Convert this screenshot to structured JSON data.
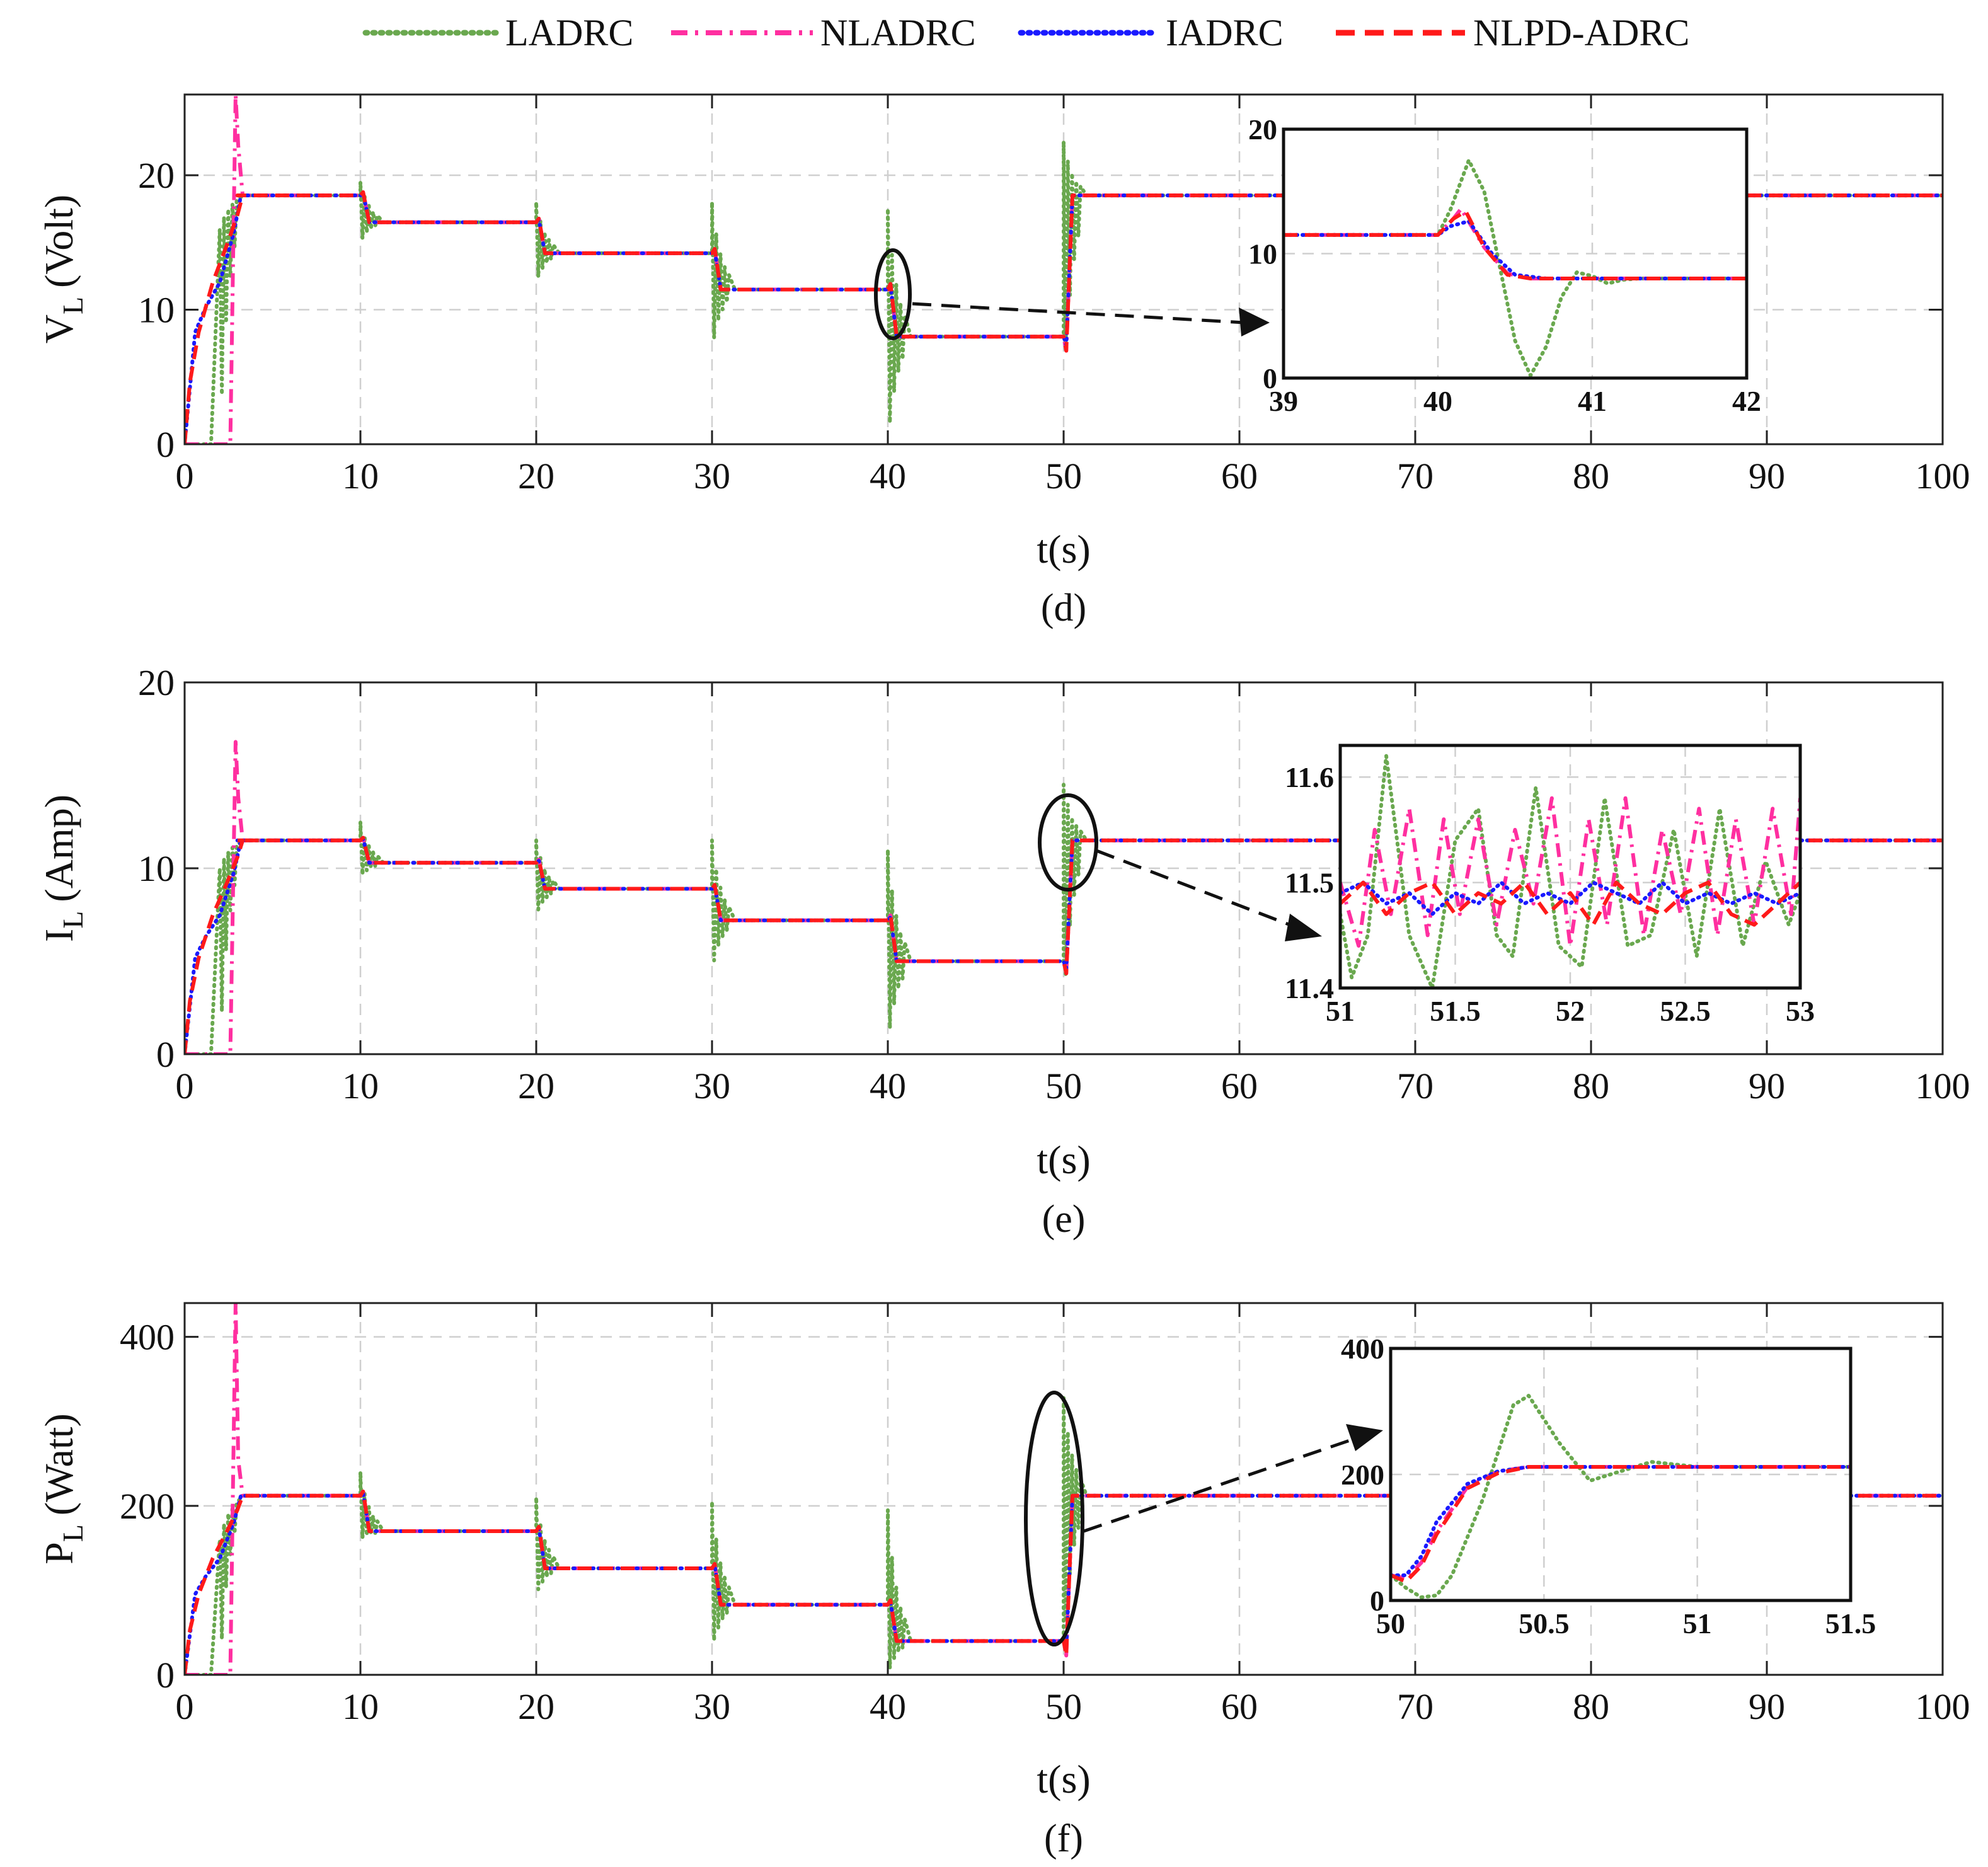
{
  "legend": [
    {
      "name": "LADRC",
      "color": "#6aa84f",
      "style": "dotted"
    },
    {
      "name": "NLADRC",
      "color": "#ff2fa0",
      "style": "dashdot"
    },
    {
      "name": "IADRC",
      "color": "#1a1aff",
      "style": "dotted"
    },
    {
      "name": "NLPD-ADRC",
      "color": "#ff1a1a",
      "style": "dashed"
    }
  ],
  "chart_data": [
    {
      "type": "line",
      "panel": "(d)",
      "xlabel": "t(s)",
      "ylabel_main": "V",
      "ylabel_sub": "L",
      "ylabel_unit": "(Volt)",
      "xlim": [
        0,
        100
      ],
      "ylim": [
        0,
        26
      ],
      "xticks": [
        0,
        10,
        20,
        30,
        40,
        50,
        60,
        70,
        80,
        90,
        100
      ],
      "yticks": [
        0,
        10,
        20
      ],
      "steady_levels": [
        {
          "t_start": 3,
          "t_end": 10,
          "value": 18.5
        },
        {
          "t_start": 10,
          "t_end": 20,
          "value": 16.5
        },
        {
          "t_start": 20,
          "t_end": 30,
          "value": 14.2
        },
        {
          "t_start": 30,
          "t_end": 40,
          "value": 11.5
        },
        {
          "t_start": 40,
          "t_end": 50,
          "value": 8
        },
        {
          "t_start": 50,
          "t_end": 100,
          "value": 18.5
        }
      ],
      "ladrc_transients": [
        {
          "t": 2,
          "max": 16,
          "min": 0
        },
        {
          "t": 10,
          "max": 19.5,
          "min": 15
        },
        {
          "t": 20,
          "max": 18,
          "min": 12
        },
        {
          "t": 30,
          "max": 18,
          "min": 7
        },
        {
          "t": 40,
          "max": 17.5,
          "min": 0
        },
        {
          "t": 50,
          "max": 22.5,
          "min": 4
        }
      ],
      "nladrc_startup_peak": {
        "t": 2.9,
        "value": 26
      },
      "inset": {
        "xlim": [
          39,
          42
        ],
        "ylim": [
          0,
          20
        ],
        "xticks": [
          39,
          40,
          41,
          42
        ],
        "yticks": [
          0,
          10,
          20
        ],
        "series": [
          {
            "name": "LADRC",
            "x": [
              39,
              40,
              40.08,
              40.2,
              40.3,
              40.4,
              40.5,
              40.6,
              40.7,
              40.8,
              40.9,
              41,
              41.1,
              41.2,
              41.3,
              42
            ],
            "y": [
              11.5,
              11.5,
              13.5,
              17.5,
              15,
              9,
              3,
              0.2,
              2.5,
              6.5,
              8.5,
              8.2,
              7.6,
              7.9,
              8,
              8
            ]
          },
          {
            "name": "NLADRC",
            "x": [
              39,
              40,
              40.1,
              40.15,
              40.3,
              40.45,
              40.6,
              42
            ],
            "y": [
              11.5,
              11.5,
              12.8,
              13.6,
              10.5,
              8.4,
              8,
              8
            ]
          },
          {
            "name": "IADRC",
            "x": [
              39,
              40,
              40.08,
              40.2,
              40.35,
              40.5,
              40.7,
              42
            ],
            "y": [
              11.5,
              11.5,
              12.2,
              12.6,
              10,
              8.3,
              8,
              8
            ]
          },
          {
            "name": "NLPD-ADRC",
            "x": [
              39,
              40,
              40.1,
              40.18,
              40.3,
              40.45,
              40.6,
              42
            ],
            "y": [
              11.5,
              11.5,
              12.8,
              13.4,
              10.5,
              8.3,
              8,
              8
            ]
          }
        ]
      }
    },
    {
      "type": "line",
      "panel": "(e)",
      "xlabel": "t(s)",
      "ylabel_main": "I",
      "ylabel_sub": "L",
      "ylabel_unit": "(Amp)",
      "xlim": [
        0,
        100
      ],
      "ylim": [
        0,
        20
      ],
      "xticks": [
        0,
        10,
        20,
        30,
        40,
        50,
        60,
        70,
        80,
        90,
        100
      ],
      "yticks": [
        0,
        10,
        20
      ],
      "steady_levels": [
        {
          "t_start": 3,
          "t_end": 10,
          "value": 11.5
        },
        {
          "t_start": 10,
          "t_end": 20,
          "value": 10.3
        },
        {
          "t_start": 20,
          "t_end": 30,
          "value": 8.9
        },
        {
          "t_start": 30,
          "t_end": 40,
          "value": 7.2
        },
        {
          "t_start": 40,
          "t_end": 50,
          "value": 5
        },
        {
          "t_start": 50,
          "t_end": 100,
          "value": 11.5
        }
      ],
      "ladrc_transients": [
        {
          "t": 2,
          "max": 10,
          "min": 0
        },
        {
          "t": 10,
          "max": 12.5,
          "min": 9.5
        },
        {
          "t": 20,
          "max": 11.5,
          "min": 7.5
        },
        {
          "t": 30,
          "max": 11.5,
          "min": 4.5
        },
        {
          "t": 40,
          "max": 11,
          "min": 0.5
        },
        {
          "t": 50,
          "max": 14.5,
          "min": 2.5
        }
      ],
      "nladrc_startup_peak": {
        "t": 2.9,
        "value": 16.8
      },
      "inset": {
        "xlim": [
          51,
          53
        ],
        "ylim": [
          11.4,
          11.63
        ],
        "xticks": [
          51,
          51.5,
          52,
          52.5,
          53
        ],
        "yticks": [
          11.4,
          11.5,
          11.6
        ],
        "series": [
          {
            "name": "LADRC",
            "x": [
              51,
              51.05,
              51.12,
              51.2,
              51.3,
              51.4,
              51.5,
              51.6,
              51.68,
              51.75,
              51.85,
              51.95,
              52.05,
              52.15,
              52.25,
              52.35,
              52.45,
              52.55,
              52.65,
              52.75,
              52.85,
              52.95,
              53
            ],
            "y": [
              11.47,
              11.41,
              11.45,
              11.62,
              11.45,
              11.4,
              11.54,
              11.57,
              11.45,
              11.43,
              11.59,
              11.44,
              11.42,
              11.58,
              11.44,
              11.45,
              11.55,
              11.43,
              11.57,
              11.44,
              11.52,
              11.46,
              11.49
            ]
          },
          {
            "name": "NLADRC",
            "x": [
              51,
              51.08,
              51.15,
              51.22,
              51.3,
              51.38,
              51.45,
              51.52,
              51.6,
              51.68,
              51.76,
              51.84,
              51.92,
              52,
              52.08,
              52.16,
              52.24,
              52.32,
              52.4,
              52.48,
              52.56,
              52.64,
              52.72,
              52.8,
              52.88,
              52.96,
              53
            ],
            "y": [
              11.5,
              11.44,
              11.55,
              11.47,
              11.57,
              11.45,
              11.56,
              11.47,
              11.56,
              11.46,
              11.55,
              11.48,
              11.58,
              11.44,
              11.56,
              11.46,
              11.58,
              11.45,
              11.55,
              11.47,
              11.57,
              11.45,
              11.56,
              11.46,
              11.57,
              11.47,
              11.58
            ]
          },
          {
            "name": "IADRC",
            "x": [
              51,
              51.1,
              51.2,
              51.3,
              51.4,
              51.5,
              51.6,
              51.7,
              51.8,
              51.9,
              52,
              52.1,
              52.2,
              52.3,
              52.4,
              52.5,
              52.6,
              52.7,
              52.8,
              52.9,
              53
            ],
            "y": [
              11.49,
              11.5,
              11.48,
              11.49,
              11.47,
              11.49,
              11.48,
              11.5,
              11.48,
              11.49,
              11.48,
              11.5,
              11.49,
              11.48,
              11.5,
              11.48,
              11.49,
              11.48,
              11.49,
              11.48,
              11.49
            ]
          },
          {
            "name": "NLPD-ADRC",
            "x": [
              51,
              51.1,
              51.2,
              51.3,
              51.4,
              51.5,
              51.6,
              51.7,
              51.8,
              51.9,
              52,
              52.1,
              52.2,
              52.3,
              52.4,
              52.5,
              52.6,
              52.7,
              52.8,
              52.9,
              53
            ],
            "y": [
              11.48,
              11.5,
              11.47,
              11.49,
              11.5,
              11.47,
              11.49,
              11.48,
              11.5,
              11.47,
              11.49,
              11.46,
              11.5,
              11.48,
              11.47,
              11.49,
              11.5,
              11.47,
              11.46,
              11.48,
              11.5
            ]
          }
        ]
      }
    },
    {
      "type": "line",
      "panel": "(f)",
      "xlabel": "t(s)",
      "ylabel_main": "P",
      "ylabel_sub": "L",
      "ylabel_unit": "(Watt)",
      "xlim": [
        0,
        100
      ],
      "ylim": [
        0,
        440
      ],
      "xticks": [
        0,
        10,
        20,
        30,
        40,
        50,
        60,
        70,
        80,
        90,
        100
      ],
      "yticks": [
        0,
        200,
        400
      ],
      "steady_levels": [
        {
          "t_start": 3.5,
          "t_end": 10,
          "value": 212
        },
        {
          "t_start": 10,
          "t_end": 20,
          "value": 170
        },
        {
          "t_start": 20,
          "t_end": 30,
          "value": 126
        },
        {
          "t_start": 30,
          "t_end": 40,
          "value": 83
        },
        {
          "t_start": 40,
          "t_end": 50,
          "value": 40
        },
        {
          "t_start": 50,
          "t_end": 100,
          "value": 212
        }
      ],
      "ladrc_transients": [
        {
          "t": 2,
          "max": 160,
          "min": 0
        },
        {
          "t": 10,
          "max": 240,
          "min": 160
        },
        {
          "t": 20,
          "max": 210,
          "min": 95
        },
        {
          "t": 30,
          "max": 205,
          "min": 30
        },
        {
          "t": 40,
          "max": 195,
          "min": 0
        },
        {
          "t": 50,
          "max": 330,
          "min": 30
        }
      ],
      "nladrc_startup_peak": {
        "t": 2.9,
        "value": 440
      },
      "inset": {
        "xlim": [
          50,
          51.5
        ],
        "ylim": [
          0,
          400
        ],
        "xticks": [
          50,
          50.5,
          51,
          51.5
        ],
        "yticks": [
          0,
          200,
          400
        ],
        "series": [
          {
            "name": "LADRC",
            "x": [
              50,
              50.05,
              50.1,
              50.15,
              50.2,
              50.3,
              50.4,
              50.45,
              50.55,
              50.65,
              50.75,
              50.85,
              51,
              51.5
            ],
            "y": [
              40,
              20,
              5,
              8,
              40,
              160,
              310,
              325,
              250,
              190,
              205,
              220,
              212,
              212
            ]
          },
          {
            "name": "NLADRC",
            "x": [
              50,
              50.05,
              50.1,
              50.15,
              50.25,
              50.35,
              50.45,
              51.5
            ],
            "y": [
              40,
              35,
              60,
              110,
              180,
              205,
              212,
              212
            ]
          },
          {
            "name": "IADRC",
            "x": [
              50,
              50.05,
              50.1,
              50.15,
              50.25,
              50.35,
              50.45,
              51.5
            ],
            "y": [
              40,
              40,
              70,
              125,
              185,
              205,
              212,
              212
            ]
          },
          {
            "name": "NLPD-ADRC",
            "x": [
              50,
              50.05,
              50.1,
              50.15,
              50.25,
              50.35,
              50.45,
              51.5
            ],
            "y": [
              40,
              30,
              55,
              105,
              178,
              202,
              212,
              212
            ]
          }
        ]
      }
    }
  ]
}
